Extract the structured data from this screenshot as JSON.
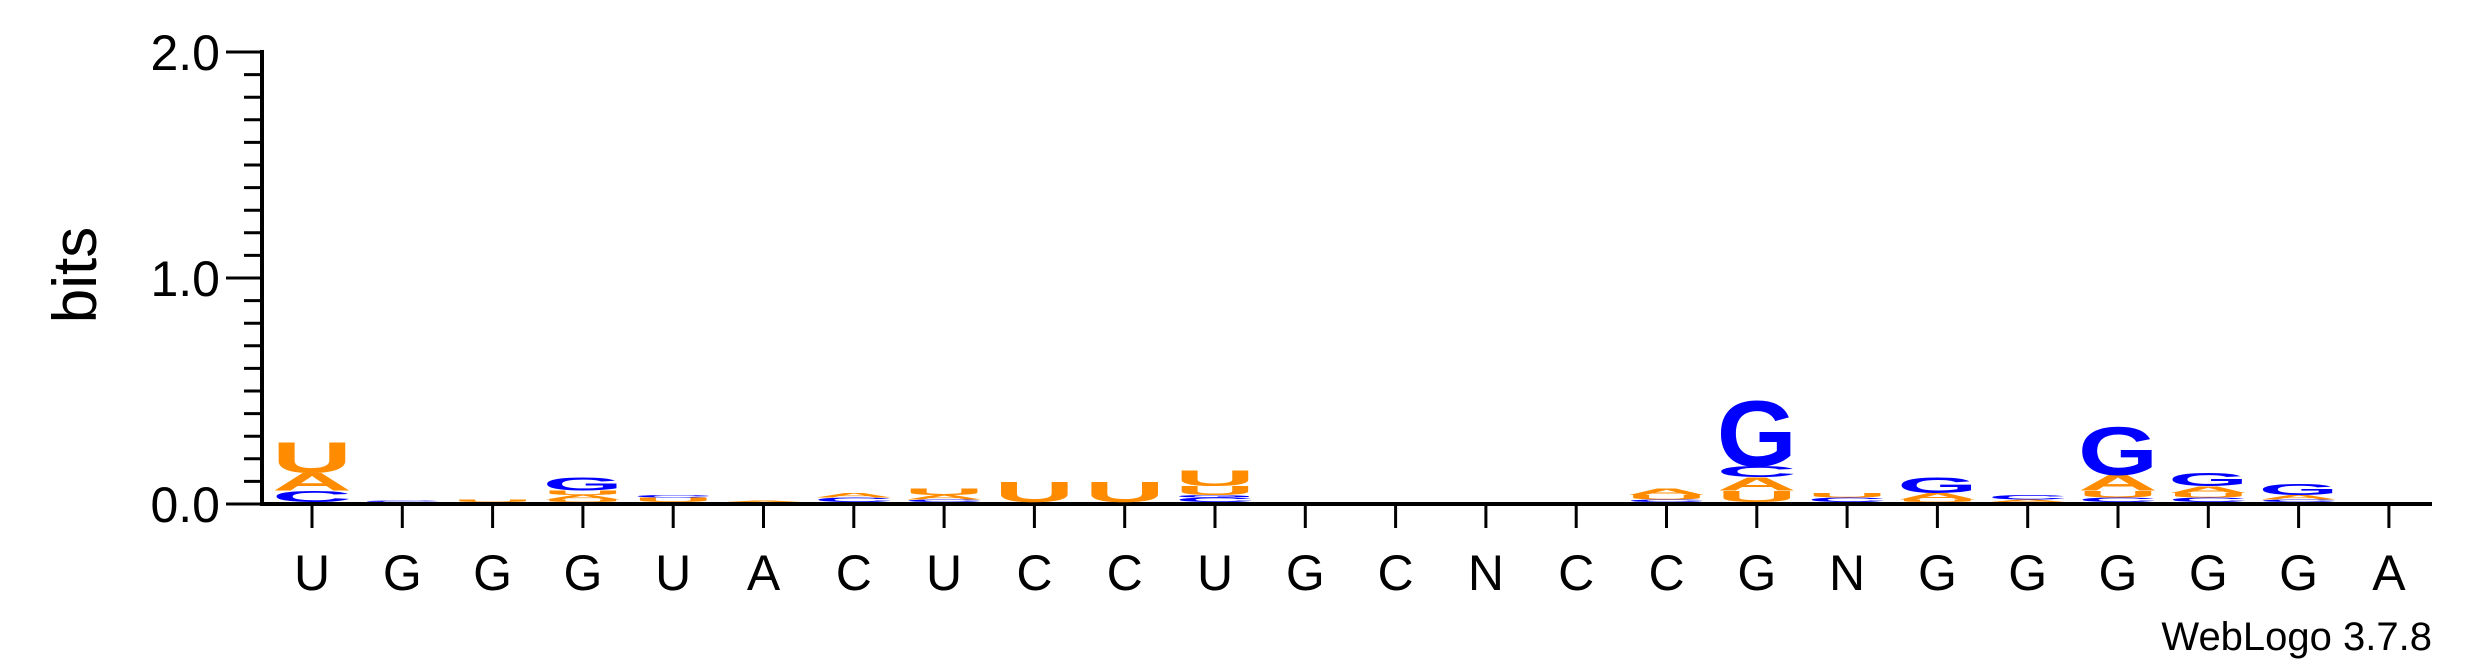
{
  "chart_data": {
    "type": "sequence-logo",
    "ylabel": "bits",
    "ylim": [
      0,
      2.0
    ],
    "yticks": [
      "0.0",
      "1.0",
      "2.0"
    ],
    "x_labels": [
      "U",
      "G",
      "G",
      "G",
      "U",
      "A",
      "C",
      "U",
      "C",
      "C",
      "U",
      "G",
      "C",
      "N",
      "C",
      "C",
      "G",
      "N",
      "G",
      "G",
      "G",
      "G",
      "G",
      "A"
    ],
    "colors": {
      "U": "#FF8C00",
      "A": "#FF8C00",
      "G": "#0000FF",
      "C": "#0000FF"
    },
    "stacks": [
      [
        {
          "letter": "C",
          "bits": 0.05
        },
        {
          "letter": "A",
          "bits": 0.08
        },
        {
          "letter": "U",
          "bits": 0.14
        }
      ],
      [
        {
          "letter": "C",
          "bits": 0.005
        }
      ],
      [
        {
          "letter": "U",
          "bits": 0.01
        }
      ],
      [
        {
          "letter": "U",
          "bits": 0.01
        },
        {
          "letter": "A",
          "bits": 0.02
        },
        {
          "letter": "U",
          "bits": 0.02
        },
        {
          "letter": "G",
          "bits": 0.06
        }
      ],
      [
        {
          "letter": "U",
          "bits": 0.02
        },
        {
          "letter": "C",
          "bits": 0.01
        }
      ],
      [
        {
          "letter": "A",
          "bits": 0.005
        }
      ],
      [
        {
          "letter": "C",
          "bits": 0.02
        },
        {
          "letter": "A",
          "bits": 0.02
        }
      ],
      [
        {
          "letter": "C",
          "bits": 0.01
        },
        {
          "letter": "A",
          "bits": 0.02
        },
        {
          "letter": "U",
          "bits": 0.03
        }
      ],
      [
        {
          "letter": "U",
          "bits": 0.09
        }
      ],
      [
        {
          "letter": "U",
          "bits": 0.09
        }
      ],
      [
        {
          "letter": "C",
          "bits": 0.02
        },
        {
          "letter": "G",
          "bits": 0.01
        },
        {
          "letter": "U",
          "bits": 0.04
        },
        {
          "letter": "U",
          "bits": 0.07
        }
      ],
      [],
      [],
      [],
      [],
      [
        {
          "letter": "C",
          "bits": 0.01
        },
        {
          "letter": "U",
          "bits": 0.02
        },
        {
          "letter": "A",
          "bits": 0.03
        }
      ],
      [
        {
          "letter": "U",
          "bits": 0.05
        },
        {
          "letter": "A",
          "bits": 0.06
        },
        {
          "letter": "C",
          "bits": 0.05
        },
        {
          "letter": "G",
          "bits": 0.3
        }
      ],
      [
        {
          "letter": "C",
          "bits": 0.02
        },
        {
          "letter": "U",
          "bits": 0.02
        }
      ],
      [
        {
          "letter": "U",
          "bits": 0.01
        },
        {
          "letter": "A",
          "bits": 0.03
        },
        {
          "letter": "G",
          "bits": 0.07
        }
      ],
      [
        {
          "letter": "A",
          "bits": 0.01
        },
        {
          "letter": "C",
          "bits": 0.02
        }
      ],
      [
        {
          "letter": "C",
          "bits": 0.02
        },
        {
          "letter": "U",
          "bits": 0.03
        },
        {
          "letter": "A",
          "bits": 0.07
        },
        {
          "letter": "G",
          "bits": 0.22
        }
      ],
      [
        {
          "letter": "C",
          "bits": 0.02
        },
        {
          "letter": "U",
          "bits": 0.02
        },
        {
          "letter": "A",
          "bits": 0.03
        },
        {
          "letter": "G",
          "bits": 0.06
        }
      ],
      [
        {
          "letter": "C",
          "bits": 0.01
        },
        {
          "letter": "A",
          "bits": 0.02
        },
        {
          "letter": "G",
          "bits": 0.05
        }
      ],
      []
    ]
  },
  "credit": "WebLogo 3.7.8"
}
